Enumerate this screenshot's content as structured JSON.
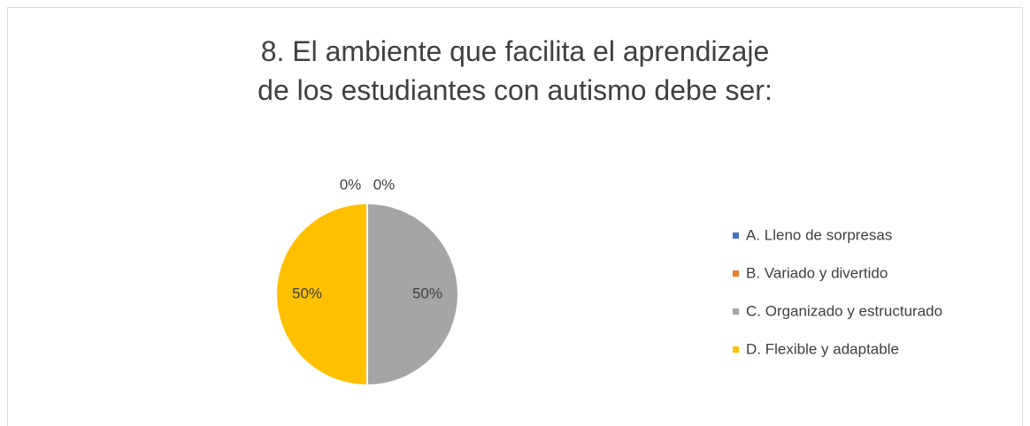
{
  "chart_data": {
    "type": "pie",
    "title": "8. El ambiente que facilita el aprendizaje de los estudiantes con autismo debe ser:",
    "categories": [
      "A. Lleno de sorpresas",
      "B.  Variado y divertido",
      "C. Organizado y estructurado",
      "D. Flexible y adaptable"
    ],
    "values": [
      0,
      0,
      50,
      50
    ],
    "value_labels": [
      "0%",
      "0%",
      "50%",
      "50%"
    ],
    "colors": [
      "#4472c4",
      "#ed7d31",
      "#a5a5a5",
      "#ffc000"
    ],
    "legend": "right"
  }
}
